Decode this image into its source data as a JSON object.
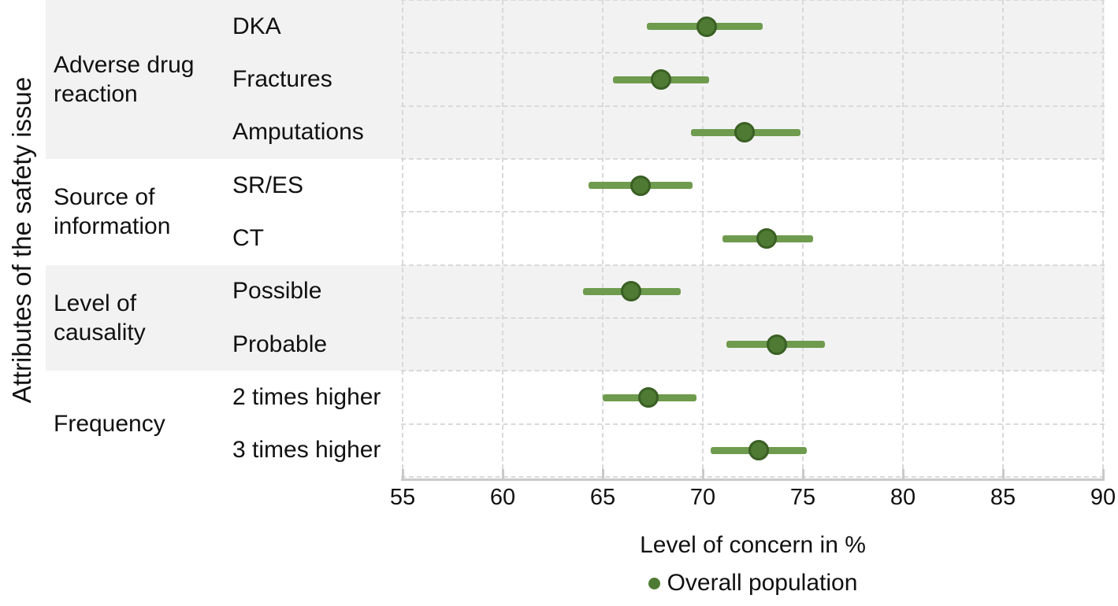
{
  "figure": {
    "y_axis_title": "Attributes of the safety issue",
    "x_axis_title": "Level of concern in %",
    "legend_label": "Overall population"
  },
  "colors": {
    "bar": "#6f9b4e",
    "dot_fill": "#4e7a33",
    "dot_stroke": "#3a5f24",
    "band": "#f2f2f2",
    "gridline": "#d9d9d9",
    "axis_line": "#c9c9c9",
    "text": "#111111"
  },
  "chart_data": {
    "type": "scatter",
    "subtype": "forest-plot (point estimate with interval bars)",
    "title": "",
    "xlabel": "Level of concern in %",
    "ylabel": "Attributes of the safety issue",
    "xlim": [
      55,
      90
    ],
    "xticks": [
      55,
      60,
      65,
      70,
      75,
      80,
      85,
      90
    ],
    "grid": "dashed; vertical lines at x ticks, horizontal lines between rows; alternate group bands shaded",
    "legend_position": "bottom center",
    "series_name": "Overall population",
    "groups": [
      {
        "label": "Adverse drug reaction",
        "items": [
          {
            "label": "DKA",
            "value": 70.2,
            "ci_low": 67.2,
            "ci_high": 73.0
          },
          {
            "label": "Fractures",
            "value": 67.9,
            "ci_low": 65.5,
            "ci_high": 70.3
          },
          {
            "label": "Amputations",
            "value": 72.1,
            "ci_low": 69.4,
            "ci_high": 74.9
          }
        ]
      },
      {
        "label": "Source of information",
        "items": [
          {
            "label": "SR/ES",
            "value": 66.9,
            "ci_low": 64.3,
            "ci_high": 69.5
          },
          {
            "label": "CT",
            "value": 73.2,
            "ci_low": 71.0,
            "ci_high": 75.5
          }
        ]
      },
      {
        "label": "Level of causality",
        "items": [
          {
            "label": "Possible",
            "value": 66.4,
            "ci_low": 64.0,
            "ci_high": 68.9
          },
          {
            "label": "Probable",
            "value": 73.7,
            "ci_low": 71.2,
            "ci_high": 76.1
          }
        ]
      },
      {
        "label": "Frequency",
        "items": [
          {
            "label": "2 times higher",
            "value": 67.3,
            "ci_low": 65.0,
            "ci_high": 69.7
          },
          {
            "label": "3 times higher",
            "value": 72.8,
            "ci_low": 70.4,
            "ci_high": 75.2
          }
        ]
      }
    ]
  }
}
